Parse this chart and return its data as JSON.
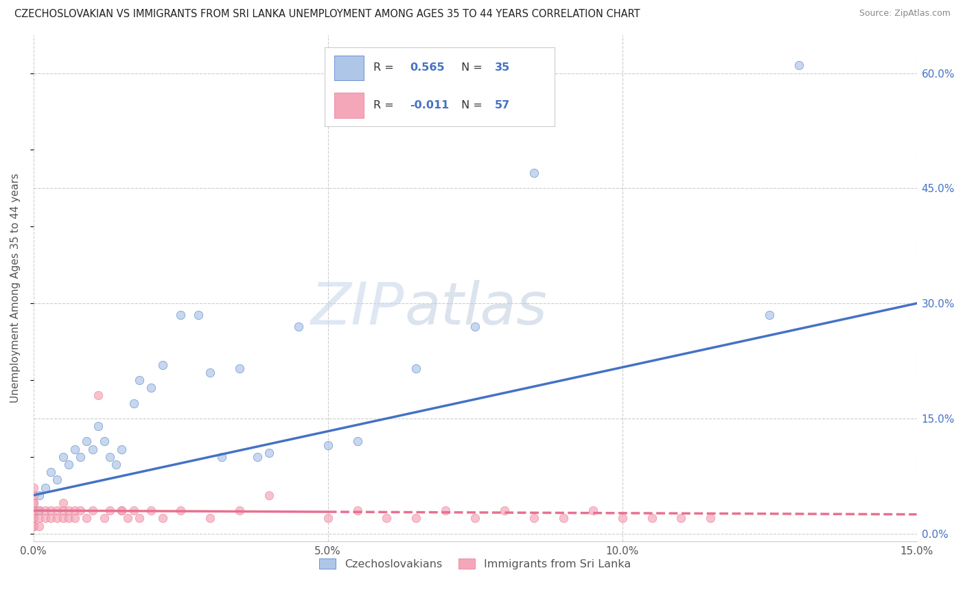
{
  "title": "CZECHOSLOVAKIAN VS IMMIGRANTS FROM SRI LANKA UNEMPLOYMENT AMONG AGES 35 TO 44 YEARS CORRELATION CHART",
  "source": "Source: ZipAtlas.com",
  "ylabel": "Unemployment Among Ages 35 to 44 years",
  "xlim": [
    0.0,
    0.15
  ],
  "ylim": [
    -0.01,
    0.65
  ],
  "x_ticks": [
    0.0,
    0.05,
    0.1,
    0.15
  ],
  "x_tick_labels": [
    "0.0%",
    "5.0%",
    "10.0%",
    "15.0%"
  ],
  "y_ticks_right": [
    0.0,
    0.15,
    0.3,
    0.45,
    0.6
  ],
  "y_tick_labels_right": [
    "0.0%",
    "15.0%",
    "30.0%",
    "45.0%",
    "60.0%"
  ],
  "grid_color": "#cccccc",
  "background_color": "#ffffff",
  "legend_label1": "Czechoslovakians",
  "legend_label2": "Immigrants from Sri Lanka",
  "R1": "0.565",
  "N1": "35",
  "R2": "-0.011",
  "N2": "57",
  "scatter1_color": "#aec6e8",
  "scatter2_color": "#f4a7b9",
  "line1_color": "#4472c4",
  "line2_color": "#e87090",
  "watermark_zip": "ZIP",
  "watermark_atlas": "atlas",
  "czechs_x": [
    0.001,
    0.001,
    0.002,
    0.003,
    0.004,
    0.005,
    0.006,
    0.007,
    0.008,
    0.009,
    0.01,
    0.011,
    0.012,
    0.013,
    0.014,
    0.015,
    0.017,
    0.018,
    0.02,
    0.022,
    0.025,
    0.028,
    0.03,
    0.032,
    0.035,
    0.038,
    0.04,
    0.045,
    0.05,
    0.055,
    0.065,
    0.075,
    0.085,
    0.125,
    0.13
  ],
  "czechs_y": [
    0.03,
    0.05,
    0.06,
    0.08,
    0.07,
    0.1,
    0.09,
    0.11,
    0.1,
    0.12,
    0.11,
    0.14,
    0.12,
    0.1,
    0.09,
    0.11,
    0.17,
    0.2,
    0.19,
    0.22,
    0.285,
    0.285,
    0.21,
    0.1,
    0.215,
    0.1,
    0.105,
    0.27,
    0.115,
    0.12,
    0.215,
    0.27,
    0.47,
    0.285,
    0.61
  ],
  "srilanka_x": [
    0.0,
    0.0,
    0.0,
    0.0,
    0.0,
    0.0,
    0.0,
    0.0,
    0.0,
    0.0,
    0.001,
    0.001,
    0.001,
    0.002,
    0.002,
    0.003,
    0.003,
    0.004,
    0.004,
    0.005,
    0.005,
    0.005,
    0.006,
    0.006,
    0.007,
    0.007,
    0.008,
    0.009,
    0.01,
    0.011,
    0.012,
    0.013,
    0.015,
    0.015,
    0.016,
    0.017,
    0.018,
    0.02,
    0.022,
    0.025,
    0.03,
    0.035,
    0.04,
    0.05,
    0.055,
    0.06,
    0.065,
    0.07,
    0.075,
    0.08,
    0.085,
    0.09,
    0.095,
    0.1,
    0.105,
    0.11,
    0.115
  ],
  "srilanka_y": [
    0.01,
    0.01,
    0.02,
    0.02,
    0.03,
    0.03,
    0.04,
    0.04,
    0.05,
    0.06,
    0.01,
    0.02,
    0.03,
    0.02,
    0.03,
    0.02,
    0.03,
    0.02,
    0.03,
    0.02,
    0.03,
    0.04,
    0.02,
    0.03,
    0.02,
    0.03,
    0.03,
    0.02,
    0.03,
    0.18,
    0.02,
    0.03,
    0.03,
    0.03,
    0.02,
    0.03,
    0.02,
    0.03,
    0.02,
    0.03,
    0.02,
    0.03,
    0.05,
    0.02,
    0.03,
    0.02,
    0.02,
    0.03,
    0.02,
    0.03,
    0.02,
    0.02,
    0.03,
    0.02,
    0.02,
    0.02,
    0.02
  ],
  "line1_x0": 0.0,
  "line1_y0": 0.05,
  "line1_x1": 0.15,
  "line1_y1": 0.3,
  "line2_x0": 0.0,
  "line2_y0": 0.03,
  "line2_x1": 0.15,
  "line2_y1": 0.025
}
